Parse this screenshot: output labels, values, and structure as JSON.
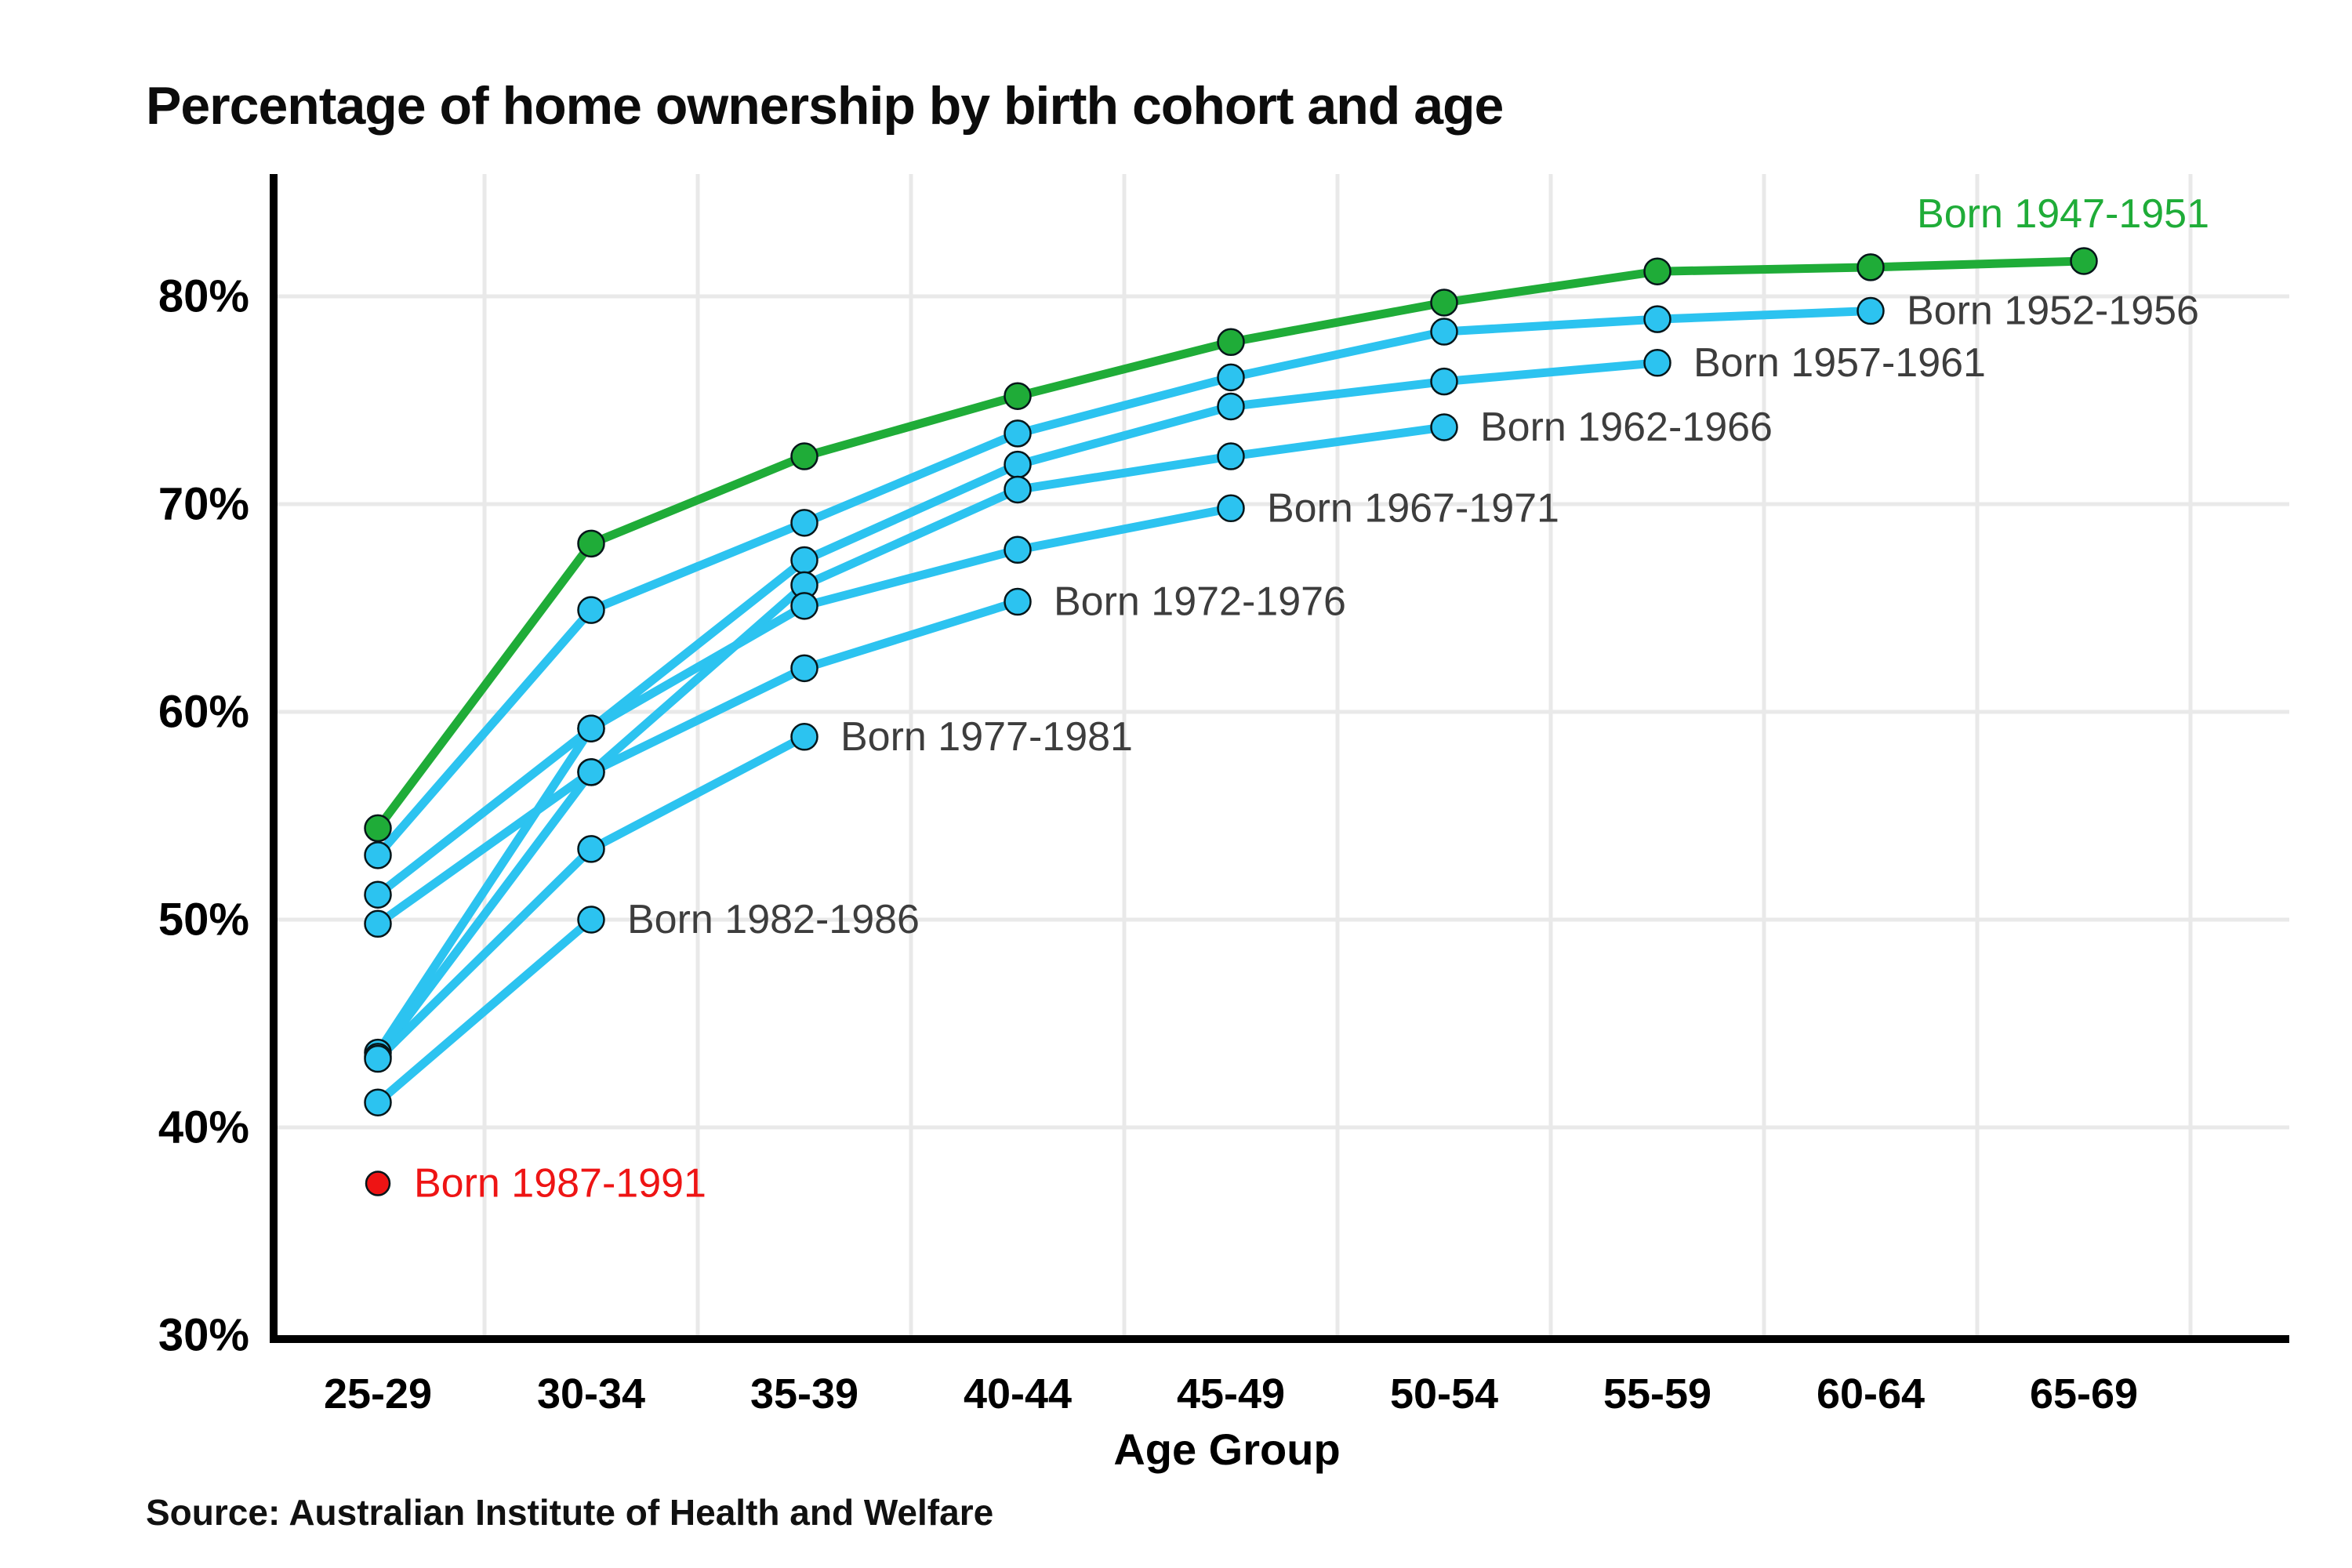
{
  "title": "Percentage of home ownership by birth cohort and age",
  "source_note": "Source: Australian Institute of Health and Welfare",
  "colors": {
    "background": "#ffffff",
    "green_series": "#1FAC38",
    "cyan_series": "#2CC3F0",
    "red_series": "#EE1414",
    "label_text": "#3d3d3d",
    "axis": "#000000",
    "gridline": "#e9e9e9",
    "title_text": "#0c0c0c"
  },
  "chart_data": {
    "type": "line",
    "title": "Percentage of home ownership by birth cohort and age",
    "xlabel": "Age Group",
    "ylabel": "",
    "ylim": [
      30,
      86
    ],
    "grid": true,
    "legend_position": "inline-end-of-line-labels",
    "categories": [
      "25-29",
      "30-34",
      "35-39",
      "40-44",
      "45-49",
      "50-54",
      "55-59",
      "60-64",
      "65-69"
    ],
    "y_ticks": [
      {
        "value": 30,
        "label": "30%"
      },
      {
        "value": 40,
        "label": "40%"
      },
      {
        "value": 50,
        "label": "50%"
      },
      {
        "value": 60,
        "label": "60%"
      },
      {
        "value": 70,
        "label": "70%"
      },
      {
        "value": 80,
        "label": "80%"
      }
    ],
    "series": [
      {
        "name": "Born 1947-1951",
        "color": "#1FAC38",
        "label_color": "#1FAC38",
        "label_pos": "above-end",
        "values": [
          54.4,
          68.1,
          72.3,
          75.2,
          77.8,
          79.7,
          81.2,
          81.4,
          81.7
        ]
      },
      {
        "name": "Born 1952-1956",
        "color": "#2CC3F0",
        "label_color": "#3d3d3d",
        "label_pos": "end",
        "values": [
          53.1,
          64.9,
          69.1,
          73.4,
          76.1,
          78.3,
          78.9,
          79.3
        ]
      },
      {
        "name": "Born 1957-1961",
        "color": "#2CC3F0",
        "label_color": "#3d3d3d",
        "label_pos": "end",
        "values": [
          51.2,
          59.2,
          67.3,
          71.9,
          74.7,
          75.9,
          76.8
        ]
      },
      {
        "name": "Born 1962-1966",
        "color": "#2CC3F0",
        "label_color": "#3d3d3d",
        "label_pos": "end",
        "values": [
          49.8,
          57.1,
          66.1,
          70.7,
          72.3,
          73.7
        ]
      },
      {
        "name": "Born 1967-1971",
        "color": "#2CC3F0",
        "label_color": "#3d3d3d",
        "label_pos": "end",
        "values": [
          43.6,
          59.2,
          65.1,
          67.8,
          69.8
        ]
      },
      {
        "name": "Born 1972-1976",
        "color": "#2CC3F0",
        "label_color": "#3d3d3d",
        "label_pos": "end",
        "values": [
          43.4,
          57.1,
          62.1,
          65.3
        ]
      },
      {
        "name": "Born 1977-1981",
        "color": "#2CC3F0",
        "label_color": "#3d3d3d",
        "label_pos": "end",
        "values": [
          43.3,
          53.4,
          58.8
        ]
      },
      {
        "name": "Born 1982-1986",
        "color": "#2CC3F0",
        "label_color": "#3d3d3d",
        "label_pos": "end",
        "values": [
          41.2,
          50.0
        ]
      },
      {
        "name": "Born 1987-1991",
        "color": "#EE1414",
        "label_color": "#EE1414",
        "label_pos": "end",
        "marker_only": true,
        "values": [
          37.3
        ]
      }
    ]
  }
}
